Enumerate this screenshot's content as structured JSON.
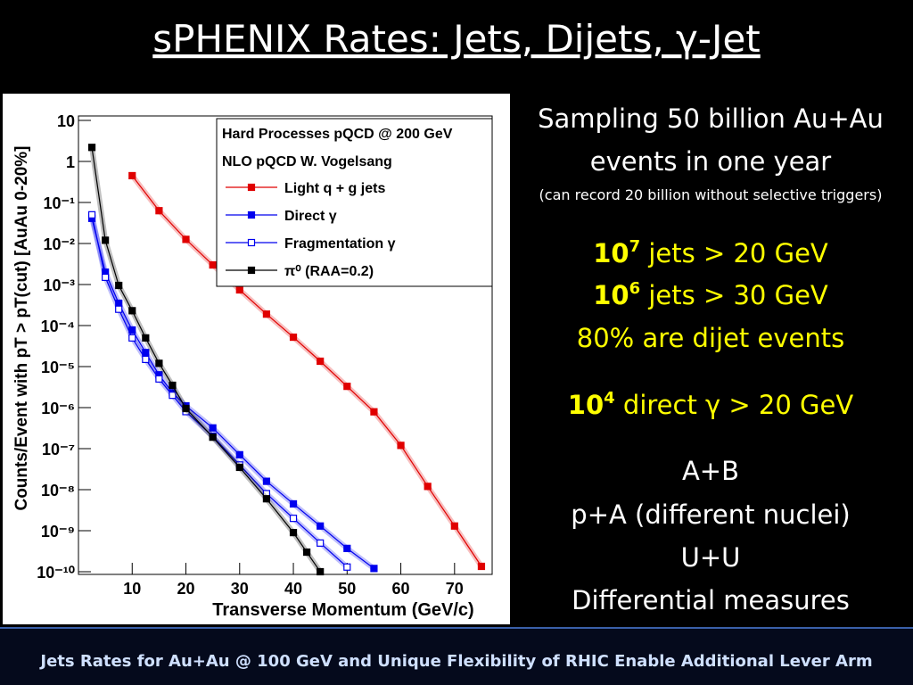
{
  "slide": {
    "title": "sPHENIX Rates:  Jets, Dijets, γ-Jet",
    "notes": [
      "Sampling 50 billion Au+Au",
      "events in one year",
      "(can record 20 billion without selective triggers)"
    ],
    "rates": [
      {
        "base": "10",
        "exp": "7",
        "text": " jets > 20 GeV"
      },
      {
        "base": "10",
        "exp": "6",
        "text": " jets > 30 GeV"
      },
      {
        "text": "80% are dijet events"
      },
      {
        "base": "10",
        "exp": "4",
        "text": " direct γ > 20 GeV"
      }
    ],
    "systems": [
      "A+B",
      "p+A (different nuclei)",
      "U+U",
      "Differential measures"
    ],
    "footer": "Jets Rates for Au+Au @ 100 GeV and Unique Flexibility of RHIC Enable Additional Lever Arm"
  },
  "chart_data": {
    "type": "line",
    "xlabel": "Transverse Momentum (GeV/c)",
    "ylabel": "Counts/Event with pT > pT(cut) [AuAu 0-20%]",
    "legend_header": [
      "Hard Processes pQCD @ 200 GeV",
      "NLO pQCD W. Vogelsang"
    ],
    "ylog": true,
    "xlim": [
      0,
      77
    ],
    "ylim": [
      1e-10,
      10
    ],
    "xticks": [
      10,
      20,
      30,
      40,
      50,
      60,
      70
    ],
    "yticks": [
      {
        "value": 1e-10,
        "label": "10⁻¹⁰"
      },
      {
        "value": 1e-09,
        "label": "10⁻⁹"
      },
      {
        "value": 1e-08,
        "label": "10⁻⁸"
      },
      {
        "value": 1e-07,
        "label": "10⁻⁷"
      },
      {
        "value": 1e-06,
        "label": "10⁻⁶"
      },
      {
        "value": 1e-05,
        "label": "10⁻⁵"
      },
      {
        "value": 0.0001,
        "label": "10⁻⁴"
      },
      {
        "value": 0.001,
        "label": "10⁻³"
      },
      {
        "value": 0.01,
        "label": "10⁻²"
      },
      {
        "value": 0.1,
        "label": "10⁻¹"
      },
      1,
      10
    ],
    "series": [
      {
        "name": "Light q + g jets",
        "color": "#e00000",
        "marker": "filled",
        "x": [
          10,
          15,
          20,
          25,
          30,
          35,
          40,
          45,
          50,
          55,
          60,
          65,
          70,
          75
        ],
        "values": [
          0.45,
          0.063,
          0.0126,
          0.003,
          0.00074,
          0.00019,
          5.2e-05,
          1.35e-05,
          3.3e-06,
          7.9e-07,
          1.2e-07,
          1.2e-08,
          1.3e-09,
          1.35e-10
        ]
      },
      {
        "name": "Direct γ",
        "color": "#0000ee",
        "marker": "filled",
        "x": [
          2.5,
          5,
          7.5,
          10,
          12.5,
          15,
          17.5,
          20,
          25,
          30,
          35,
          40,
          45,
          50,
          55
        ],
        "values": [
          0.041,
          0.002,
          0.00035,
          7.8e-05,
          2.2e-05,
          6.3e-06,
          2.3e-06,
          1.1e-06,
          3.2e-07,
          7.1e-08,
          1.6e-08,
          4.5e-09,
          1.3e-09,
          3.7e-10,
          1.2e-10
        ]
      },
      {
        "name": "Fragmentation γ",
        "color": "#0000ee",
        "marker": "open",
        "x": [
          2.5,
          5,
          7.5,
          10,
          12.5,
          15,
          17.5,
          20,
          25,
          30,
          35,
          40,
          45,
          50
        ],
        "values": [
          0.05,
          0.0015,
          0.00025,
          5e-05,
          1.5e-05,
          5e-06,
          2e-06,
          8e-07,
          2e-07,
          4e-08,
          8e-09,
          2e-09,
          5e-10,
          1.3e-10
        ]
      },
      {
        "name": "π⁰ (RAA=0.2)",
        "color": "#000000",
        "marker": "filled",
        "x": [
          2.5,
          5,
          7.5,
          10,
          12.5,
          15,
          17.5,
          20,
          25,
          30,
          35,
          40,
          42.5,
          45
        ],
        "values": [
          2.2,
          0.012,
          0.00095,
          0.00023,
          5e-05,
          1.2e-05,
          3.5e-06,
          9.5e-07,
          1.9e-07,
          3.5e-08,
          6e-09,
          9e-10,
          3e-10,
          1e-10
        ]
      }
    ]
  }
}
